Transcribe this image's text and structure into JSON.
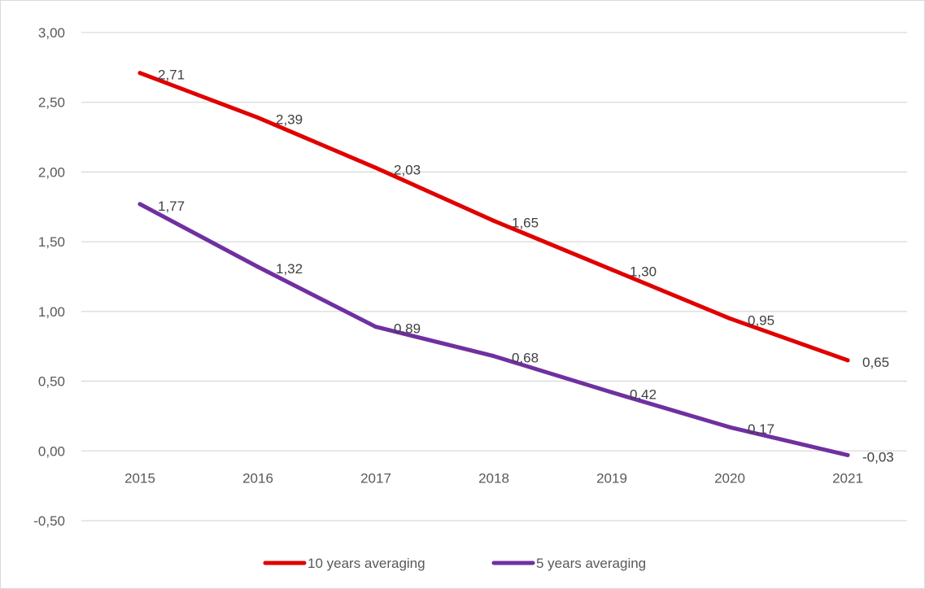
{
  "chart_data": {
    "type": "line",
    "title": "",
    "xlabel": "",
    "ylabel": "",
    "x": [
      "2015",
      "2016",
      "2017",
      "2018",
      "2019",
      "2020",
      "2021"
    ],
    "y_ticks": [
      "3,00",
      "2,50",
      "2,00",
      "1,50",
      "1,00",
      "0,50",
      "0,00",
      "-0,50"
    ],
    "y_tick_values": [
      3.0,
      2.5,
      2.0,
      1.5,
      1.0,
      0.5,
      0.0,
      -0.5
    ],
    "ylim": [
      -0.5,
      3.0
    ],
    "grid": true,
    "legend_position": "bottom",
    "series": [
      {
        "name": "10 years averaging",
        "color": "#e00000",
        "values": [
          2.71,
          2.39,
          2.03,
          1.65,
          1.3,
          0.95,
          0.65
        ],
        "labels": [
          "2,71",
          "2,39",
          "2,03",
          "1,65",
          "1,30",
          "0,95",
          "0,65"
        ]
      },
      {
        "name": "5 years averaging",
        "color": "#7030a0",
        "values": [
          1.77,
          1.32,
          0.89,
          0.68,
          0.42,
          0.17,
          -0.03
        ],
        "labels": [
          "1,77",
          "1,32",
          "0,89",
          "0,68",
          "0,42",
          "0,17",
          "-0,03"
        ]
      }
    ]
  }
}
